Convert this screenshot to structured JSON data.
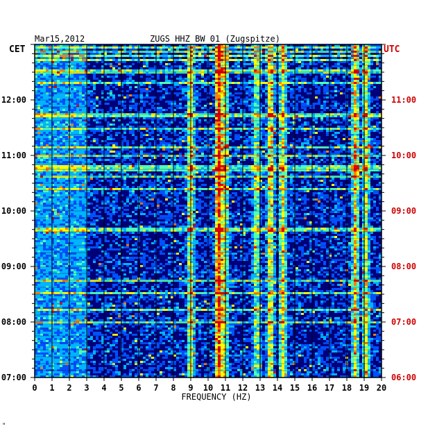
{
  "chart_data": {
    "type": "heatmap",
    "title": "ZUGS HHZ BW 01 (Zugspitze)",
    "date": "Mar15,2012",
    "xlabel": "FREQUENCY (HZ)",
    "xlim": [
      0,
      20
    ],
    "x_ticks": [
      "0",
      "1",
      "2",
      "3",
      "4",
      "5",
      "6",
      "7",
      "8",
      "9",
      "10",
      "11",
      "12",
      "13",
      "14",
      "15",
      "16",
      "17",
      "18",
      "19",
      "20"
    ],
    "left_axis": {
      "label": "CET",
      "ticks": [
        "12:00",
        "11:00",
        "10:00",
        "09:00",
        "08:00",
        "07:00"
      ],
      "tick_hours": [
        12,
        11,
        10,
        9,
        8,
        7
      ]
    },
    "right_axis": {
      "label": "UTC",
      "ticks": [
        "11:00",
        "10:00",
        "09:00",
        "08:00",
        "07:00",
        "06:00"
      ],
      "tick_hours": [
        11,
        10,
        9,
        8,
        7,
        6
      ]
    },
    "time_range_cet": [
      "07:00",
      "12:50"
    ],
    "colormap": [
      "#00007a",
      "#0014c8",
      "#0050ff",
      "#00b4ff",
      "#50ffb4",
      "#ffff00",
      "#ff8000",
      "#e00000"
    ],
    "axis_colors": {
      "cet": "#000000",
      "utc": "#d00000"
    },
    "dominant_bands_hz": [
      {
        "f": 9.0,
        "strength": 0.55
      },
      {
        "f": 10.6,
        "strength": 0.9
      },
      {
        "f": 11.0,
        "strength": 0.5
      },
      {
        "f": 12.8,
        "strength": 0.45
      },
      {
        "f": 13.6,
        "strength": 0.6
      },
      {
        "f": 14.3,
        "strength": 0.55
      },
      {
        "f": 18.5,
        "strength": 0.6
      },
      {
        "f": 19.1,
        "strength": 0.5
      }
    ],
    "grid": true
  },
  "footer_mark": "\""
}
